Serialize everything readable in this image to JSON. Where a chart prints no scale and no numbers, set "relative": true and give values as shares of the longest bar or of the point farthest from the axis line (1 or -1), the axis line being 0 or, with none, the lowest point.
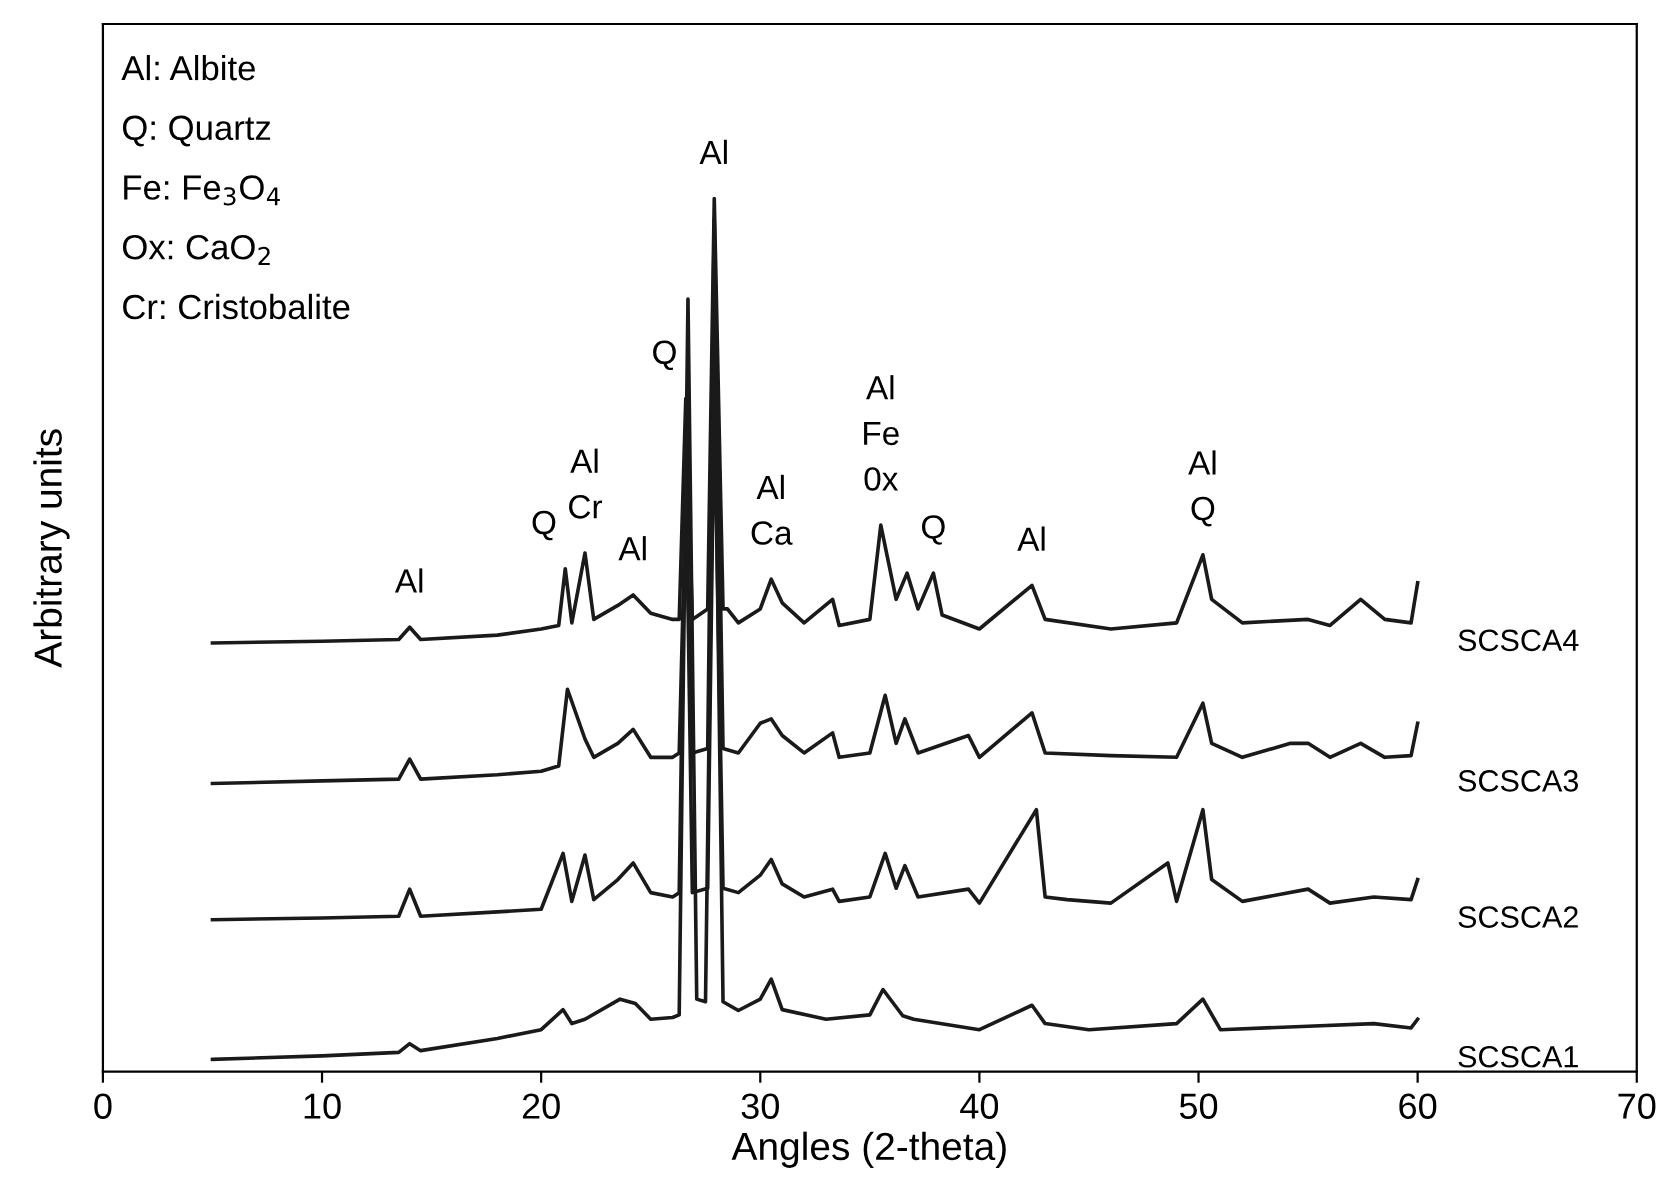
{
  "chart_data": {
    "type": "line",
    "xlabel": "Angles (2-theta)",
    "ylabel": "Arbitrary units",
    "relative": true,
    "xlim": [
      0,
      70
    ],
    "xticks": [
      0,
      10,
      20,
      30,
      40,
      50,
      60,
      70
    ],
    "grid": false,
    "legend": false,
    "marker": "none",
    "line_style": "solid",
    "annotations": [
      "Al: Albite",
      "Q: Quartz",
      "Fe: Fe$_{3}$O$_{4}$",
      "Ox: CaO$_{2}$",
      "Cr: Cristobalite",
      {
        "text": "Al",
        "x": 14,
        "y": 0.509
      },
      {
        "text": "Q",
        "x": 21.1,
        "y": 0.576
      },
      {
        "text": "Al\nCr",
        "x": 22,
        "y": 0.594
      },
      {
        "text": "Al",
        "x": 24.2,
        "y": 0.546
      },
      {
        "text": "Q",
        "x": 26.6,
        "y": 0.771
      },
      {
        "text": "Al",
        "x": 27.9,
        "y": 1.0
      },
      {
        "text": "Al\nCa",
        "x": 30.5,
        "y": 0.564
      },
      {
        "text": "Al\nFe\n0x",
        "x": 35.5,
        "y": 0.626
      },
      {
        "text": "Q",
        "x": 37.9,
        "y": 0.571
      },
      {
        "text": "Al",
        "x": 42.4,
        "y": 0.557
      },
      {
        "text": "Al\nQ",
        "x": 50.2,
        "y": 0.592
      }
    ],
    "series": [
      {
        "name": "SCSCA4",
        "color": "#1a1a1a",
        "x": [
          5,
          10,
          13.5,
          14,
          14.5,
          18,
          20,
          20.8,
          21.1,
          21.4,
          22,
          22.4,
          23.5,
          24.2,
          25,
          26,
          26.3,
          26.6,
          26.9,
          27.6,
          27.9,
          28.3,
          28.5,
          29,
          30,
          30.5,
          31,
          32,
          33.3,
          33.6,
          35,
          35.5,
          36.2,
          36.7,
          37.2,
          37.9,
          38.3,
          40,
          42.4,
          43,
          46,
          49,
          50.2,
          50.6,
          52,
          55,
          56,
          57.4,
          58.5,
          59.7,
          60
        ],
        "values": [
          0.491,
          0.493,
          0.495,
          0.509,
          0.495,
          0.5,
          0.507,
          0.511,
          0.576,
          0.514,
          0.594,
          0.518,
          0.534,
          0.546,
          0.525,
          0.518,
          0.518,
          0.771,
          0.518,
          0.53,
          1.0,
          0.53,
          0.53,
          0.514,
          0.53,
          0.564,
          0.537,
          0.514,
          0.541,
          0.511,
          0.518,
          0.626,
          0.541,
          0.571,
          0.53,
          0.571,
          0.523,
          0.507,
          0.557,
          0.518,
          0.507,
          0.514,
          0.592,
          0.541,
          0.514,
          0.518,
          0.511,
          0.541,
          0.518,
          0.514,
          0.56
        ]
      },
      {
        "name": "SCSCA3",
        "color": "#1a1a1a",
        "x": [
          5,
          10,
          13.5,
          14,
          14.5,
          18,
          20,
          20.8,
          21.2,
          22,
          22.4,
          23.5,
          24.2,
          25,
          26,
          26.3,
          26.6,
          26.9,
          27.6,
          27.9,
          28.3,
          29,
          30,
          30.5,
          31,
          32,
          33.3,
          33.6,
          35,
          35.7,
          36.2,
          36.6,
          37.2,
          39.5,
          40,
          42.4,
          43,
          46,
          49,
          50.2,
          50.6,
          52,
          54.2,
          55,
          56,
          57.4,
          58.5,
          59.7,
          60
        ],
        "values": [
          0.33,
          0.333,
          0.335,
          0.358,
          0.335,
          0.34,
          0.344,
          0.35,
          0.438,
          0.381,
          0.36,
          0.376,
          0.392,
          0.36,
          0.36,
          0.365,
          0.656,
          0.365,
          0.37,
          0.977,
          0.37,
          0.365,
          0.399,
          0.404,
          0.385,
          0.365,
          0.388,
          0.36,
          0.365,
          0.431,
          0.376,
          0.404,
          0.365,
          0.385,
          0.36,
          0.411,
          0.365,
          0.362,
          0.36,
          0.422,
          0.376,
          0.36,
          0.376,
          0.376,
          0.36,
          0.376,
          0.36,
          0.362,
          0.399
        ]
      },
      {
        "name": "SCSCA2",
        "color": "#1a1a1a",
        "x": [
          5,
          10,
          13.5,
          14,
          14.5,
          18,
          20,
          21,
          21.4,
          22,
          22.4,
          23.5,
          24.2,
          25,
          26,
          26.3,
          26.6,
          26.9,
          27.6,
          27.9,
          28.3,
          29,
          30,
          30.5,
          31,
          32,
          33.3,
          33.6,
          35,
          35.7,
          36.2,
          36.6,
          37.2,
          39.5,
          40,
          42.6,
          43,
          44,
          46,
          48.6,
          49,
          50.2,
          50.6,
          52,
          55,
          56,
          58,
          59.7,
          60
        ],
        "values": [
          0.174,
          0.176,
          0.178,
          0.209,
          0.178,
          0.183,
          0.186,
          0.25,
          0.195,
          0.248,
          0.197,
          0.22,
          0.239,
          0.205,
          0.2,
          0.205,
          0.702,
          0.205,
          0.21,
          0.771,
          0.21,
          0.205,
          0.225,
          0.243,
          0.215,
          0.2,
          0.209,
          0.195,
          0.2,
          0.25,
          0.21,
          0.236,
          0.2,
          0.209,
          0.193,
          0.3,
          0.2,
          0.197,
          0.193,
          0.239,
          0.195,
          0.3,
          0.22,
          0.195,
          0.209,
          0.193,
          0.2,
          0.197,
          0.22
        ]
      },
      {
        "name": "SCSCA1",
        "color": "#1a1a1a",
        "x": [
          5,
          10,
          13.5,
          14,
          14.5,
          18,
          20,
          21,
          21.4,
          22,
          23.6,
          24.3,
          25,
          26,
          26.3,
          26.7,
          27.1,
          27.5,
          27.9,
          28.3,
          29,
          30,
          30.5,
          31,
          33,
          35,
          35.6,
          36.5,
          37,
          40,
          42.4,
          43,
          45,
          49,
          50.2,
          51,
          55,
          58,
          59.7,
          60
        ],
        "values": [
          0.014,
          0.018,
          0.022,
          0.032,
          0.024,
          0.038,
          0.048,
          0.071,
          0.055,
          0.06,
          0.083,
          0.078,
          0.06,
          0.062,
          0.065,
          0.885,
          0.083,
          0.08,
          0.839,
          0.08,
          0.07,
          0.083,
          0.106,
          0.071,
          0.06,
          0.065,
          0.094,
          0.064,
          0.06,
          0.048,
          0.076,
          0.055,
          0.048,
          0.055,
          0.083,
          0.048,
          0.052,
          0.055,
          0.05,
          0.06
        ]
      }
    ]
  }
}
